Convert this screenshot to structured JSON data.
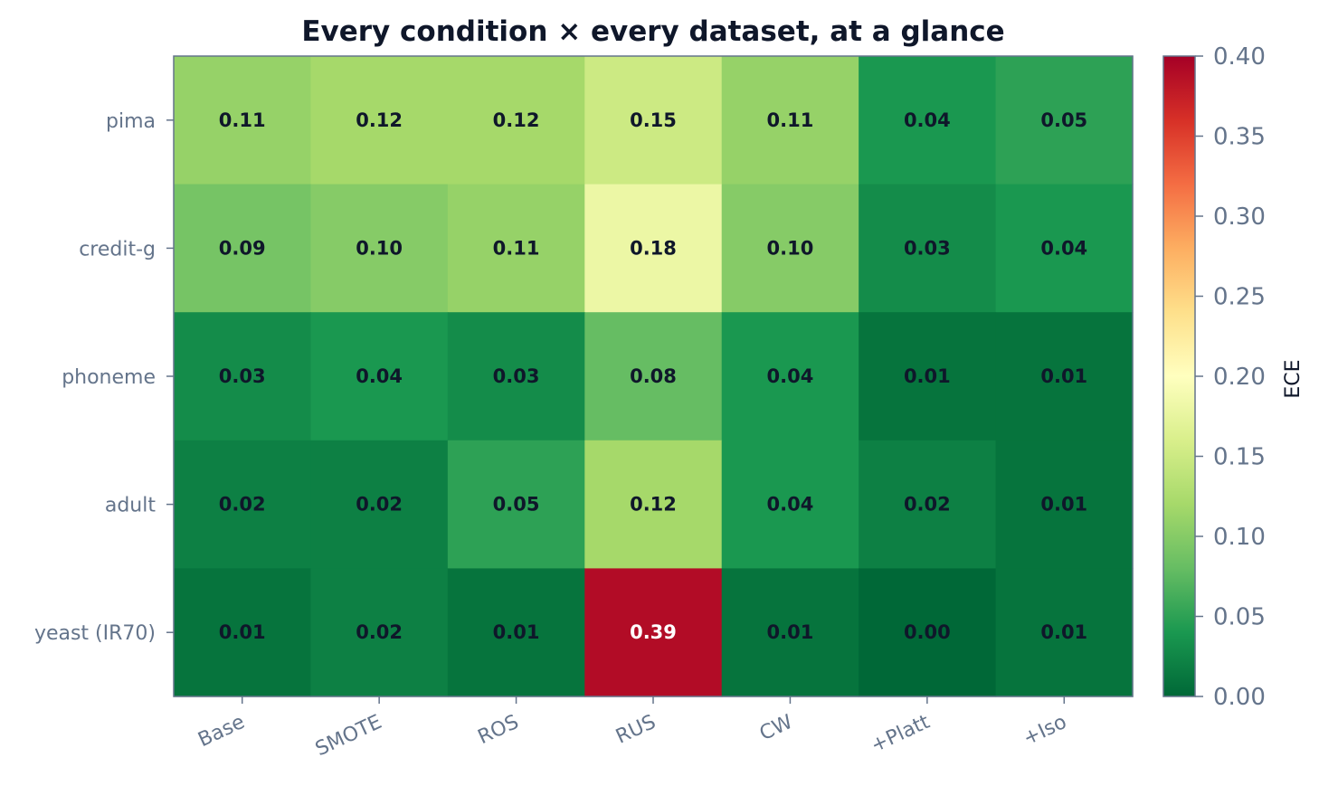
{
  "chart_data": {
    "type": "heatmap",
    "title": "Every condition × every dataset, at a glance",
    "columns": [
      "Base",
      "SMOTE",
      "ROS",
      "RUS",
      "CW",
      "+Platt",
      "+Iso"
    ],
    "rows": [
      "pima",
      "credit-g",
      "phoneme",
      "adult",
      "yeast (IR70)"
    ],
    "values": [
      [
        0.11,
        0.12,
        0.12,
        0.15,
        0.11,
        0.04,
        0.05
      ],
      [
        0.09,
        0.1,
        0.11,
        0.18,
        0.1,
        0.03,
        0.04
      ],
      [
        0.03,
        0.04,
        0.03,
        0.08,
        0.04,
        0.01,
        0.01
      ],
      [
        0.02,
        0.02,
        0.05,
        0.12,
        0.04,
        0.02,
        0.01
      ],
      [
        0.01,
        0.02,
        0.01,
        0.39,
        0.01,
        0.0,
        0.01
      ]
    ],
    "value_format_decimals": 2,
    "colorbar": {
      "label": "ECE",
      "vmin": 0.0,
      "vmax": 0.4,
      "ticks": [
        "0.00",
        "0.05",
        "0.10",
        "0.15",
        "0.20",
        "0.25",
        "0.30",
        "0.35",
        "0.40"
      ],
      "colormap": "RdYlGn_r"
    }
  }
}
